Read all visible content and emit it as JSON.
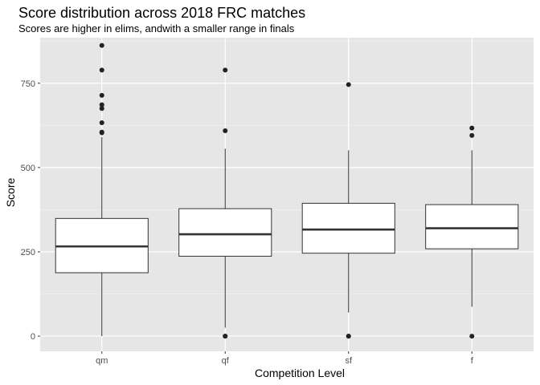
{
  "chart_data": {
    "type": "boxplot",
    "title": "Score distribution across 2018 FRC matches",
    "subtitle": "Scores are higher in elims, andwith a smaller range in finals",
    "xlabel": "Competition Level",
    "ylabel": "Score",
    "categories": [
      "qm",
      "qf",
      "sf",
      "f"
    ],
    "ylim": [
      -45,
      885
    ],
    "yticks": [
      0,
      250,
      500,
      750
    ],
    "grid": true,
    "boxes": [
      {
        "category": "qm",
        "lower_whisker": 0,
        "q1": 188,
        "median": 266,
        "q3": 349,
        "upper_whisker": 590,
        "outliers": [
          603,
          605,
          633,
          675,
          686,
          714,
          789,
          862
        ]
      },
      {
        "category": "qf",
        "lower_whisker": 25,
        "q1": 237,
        "median": 302,
        "q3": 378,
        "upper_whisker": 556,
        "outliers": [
          0,
          0,
          609,
          789
        ]
      },
      {
        "category": "sf",
        "lower_whisker": 70,
        "q1": 246,
        "median": 316,
        "q3": 394,
        "upper_whisker": 551,
        "outliers": [
          0,
          0,
          746
        ]
      },
      {
        "category": "f",
        "lower_whisker": 87,
        "q1": 259,
        "median": 320,
        "q3": 390,
        "upper_whisker": 551,
        "outliers": [
          0,
          595,
          617
        ]
      }
    ],
    "colors": {
      "panel": "#e6e6e6",
      "grid_major": "#ffffff",
      "grid_minor": "#f2f2f2",
      "box_fill": "#ffffff",
      "stroke": "#333333",
      "outlier": "#222222"
    }
  }
}
